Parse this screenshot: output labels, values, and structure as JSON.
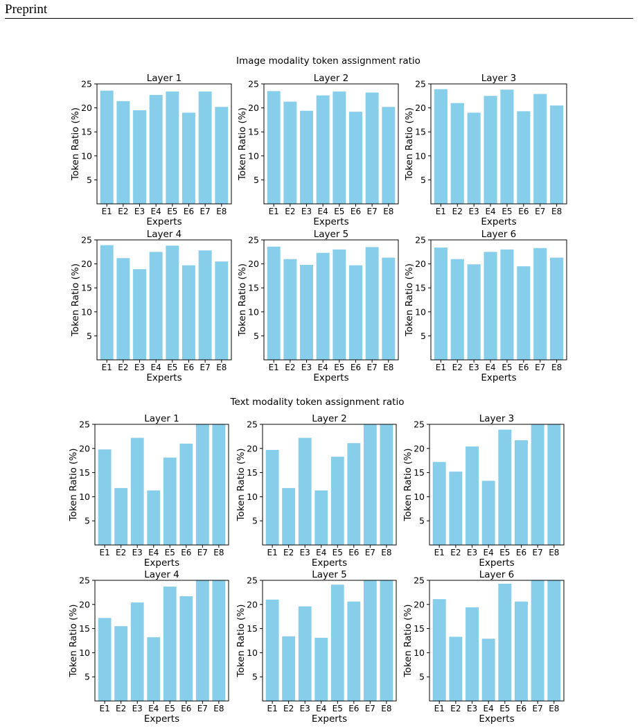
{
  "page": {
    "running_head": "Preprint"
  },
  "groups": [
    {
      "title": "Image modality token assignment ratio"
    },
    {
      "title": "Text modality token assignment ratio"
    }
  ],
  "style": {
    "bar_color": "#87ceeb",
    "axis_color": "#000000"
  },
  "chart_data": [
    {
      "type": "bar",
      "group": "Image modality token assignment ratio",
      "title": "Layer 1",
      "xlabel": "Experts",
      "ylabel": "Token Ratio (%)",
      "categories": [
        "E1",
        "E2",
        "E3",
        "E4",
        "E5",
        "E6",
        "E7",
        "E8"
      ],
      "values": [
        23.6,
        21.4,
        19.5,
        22.7,
        23.4,
        19.0,
        23.4,
        20.2
      ],
      "ylim": [
        0,
        25
      ],
      "yticks": [
        5,
        10,
        15,
        20,
        25
      ],
      "grid": false
    },
    {
      "type": "bar",
      "group": "Image modality token assignment ratio",
      "title": "Layer 2",
      "xlabel": "Experts",
      "ylabel": "Token Ratio (%)",
      "categories": [
        "E1",
        "E2",
        "E3",
        "E4",
        "E5",
        "E6",
        "E7",
        "E8"
      ],
      "values": [
        23.5,
        21.3,
        19.4,
        22.6,
        23.4,
        19.2,
        23.2,
        20.2
      ],
      "ylim": [
        0,
        25
      ],
      "yticks": [
        5,
        10,
        15,
        20,
        25
      ],
      "grid": false
    },
    {
      "type": "bar",
      "group": "Image modality token assignment ratio",
      "title": "Layer 3",
      "xlabel": "Experts",
      "ylabel": "Token Ratio (%)",
      "categories": [
        "E1",
        "E2",
        "E3",
        "E4",
        "E5",
        "E6",
        "E7",
        "E8"
      ],
      "values": [
        23.9,
        21.0,
        19.0,
        22.5,
        23.8,
        19.3,
        22.9,
        20.5
      ],
      "ylim": [
        0,
        25
      ],
      "yticks": [
        5,
        10,
        15,
        20,
        25
      ],
      "grid": false
    },
    {
      "type": "bar",
      "group": "Image modality token assignment ratio",
      "title": "Layer 4",
      "xlabel": "Experts",
      "ylabel": "Token Ratio (%)",
      "categories": [
        "E1",
        "E2",
        "E3",
        "E4",
        "E5",
        "E6",
        "E7",
        "E8"
      ],
      "values": [
        23.9,
        21.2,
        18.9,
        22.5,
        23.8,
        19.7,
        22.8,
        20.5
      ],
      "ylim": [
        0,
        25
      ],
      "yticks": [
        5,
        10,
        15,
        20,
        25
      ],
      "grid": false
    },
    {
      "type": "bar",
      "group": "Image modality token assignment ratio",
      "title": "Layer 5",
      "xlabel": "Experts",
      "ylabel": "Token Ratio (%)",
      "categories": [
        "E1",
        "E2",
        "E3",
        "E4",
        "E5",
        "E6",
        "E7",
        "E8"
      ],
      "values": [
        23.6,
        21.0,
        19.8,
        22.3,
        23.0,
        19.7,
        23.5,
        21.3
      ],
      "ylim": [
        0,
        25
      ],
      "yticks": [
        5,
        10,
        15,
        20,
        25
      ],
      "grid": false
    },
    {
      "type": "bar",
      "group": "Image modality token assignment ratio",
      "title": "Layer 6",
      "xlabel": "Experts",
      "ylabel": "Token Ratio (%)",
      "categories": [
        "E1",
        "E2",
        "E3",
        "E4",
        "E5",
        "E6",
        "E7",
        "E8"
      ],
      "values": [
        23.4,
        21.0,
        19.9,
        22.5,
        23.0,
        19.5,
        23.3,
        21.3
      ],
      "ylim": [
        0,
        25
      ],
      "yticks": [
        5,
        10,
        15,
        20,
        25
      ],
      "grid": false
    },
    {
      "type": "bar",
      "group": "Text modality token assignment ratio",
      "title": "Layer 1",
      "xlabel": "Experts",
      "ylabel": "Token Ratio (%)",
      "categories": [
        "E1",
        "E2",
        "E3",
        "E4",
        "E5",
        "E6",
        "E7",
        "E8"
      ],
      "values": [
        19.8,
        11.8,
        22.2,
        11.3,
        18.1,
        21.0,
        25.0,
        25.0
      ],
      "ylim": [
        0,
        25
      ],
      "yticks": [
        5,
        10,
        15,
        20,
        25
      ],
      "grid": false
    },
    {
      "type": "bar",
      "group": "Text modality token assignment ratio",
      "title": "Layer 2",
      "xlabel": "Experts",
      "ylabel": "Token Ratio (%)",
      "categories": [
        "E1",
        "E2",
        "E3",
        "E4",
        "E5",
        "E6",
        "E7",
        "E8"
      ],
      "values": [
        19.7,
        11.8,
        22.2,
        11.3,
        18.3,
        21.1,
        25.0,
        25.0
      ],
      "ylim": [
        0,
        25
      ],
      "yticks": [
        5,
        10,
        15,
        20,
        25
      ],
      "grid": false
    },
    {
      "type": "bar",
      "group": "Text modality token assignment ratio",
      "title": "Layer 3",
      "xlabel": "Experts",
      "ylabel": "Token Ratio (%)",
      "categories": [
        "E1",
        "E2",
        "E3",
        "E4",
        "E5",
        "E6",
        "E7",
        "E8"
      ],
      "values": [
        17.2,
        15.2,
        20.4,
        13.3,
        23.9,
        21.7,
        25.0,
        25.0
      ],
      "ylim": [
        0,
        25
      ],
      "yticks": [
        5,
        10,
        15,
        20,
        25
      ],
      "grid": false
    },
    {
      "type": "bar",
      "group": "Text modality token assignment ratio",
      "title": "Layer 4",
      "xlabel": "Experts",
      "ylabel": "Token Ratio (%)",
      "categories": [
        "E1",
        "E2",
        "E3",
        "E4",
        "E5",
        "E6",
        "E7",
        "E8"
      ],
      "values": [
        17.2,
        15.5,
        20.4,
        13.2,
        23.7,
        21.7,
        25.0,
        25.0
      ],
      "ylim": [
        0,
        25
      ],
      "yticks": [
        5,
        10,
        15,
        20,
        25
      ],
      "grid": false
    },
    {
      "type": "bar",
      "group": "Text modality token assignment ratio",
      "title": "Layer 5",
      "xlabel": "Experts",
      "ylabel": "Token Ratio (%)",
      "categories": [
        "E1",
        "E2",
        "E3",
        "E4",
        "E5",
        "E6",
        "E7",
        "E8"
      ],
      "values": [
        21.0,
        13.4,
        19.6,
        13.1,
        24.1,
        20.6,
        25.0,
        25.0
      ],
      "ylim": [
        0,
        25
      ],
      "yticks": [
        5,
        10,
        15,
        20,
        25
      ],
      "grid": false
    },
    {
      "type": "bar",
      "group": "Text modality token assignment ratio",
      "title": "Layer 6",
      "xlabel": "Experts",
      "ylabel": "Token Ratio (%)",
      "categories": [
        "E1",
        "E2",
        "E3",
        "E4",
        "E5",
        "E6",
        "E7",
        "E8"
      ],
      "values": [
        21.1,
        13.3,
        19.4,
        12.9,
        24.3,
        20.6,
        25.0,
        25.0
      ],
      "ylim": [
        0,
        25
      ],
      "yticks": [
        5,
        10,
        15,
        20,
        25
      ],
      "grid": false
    }
  ]
}
